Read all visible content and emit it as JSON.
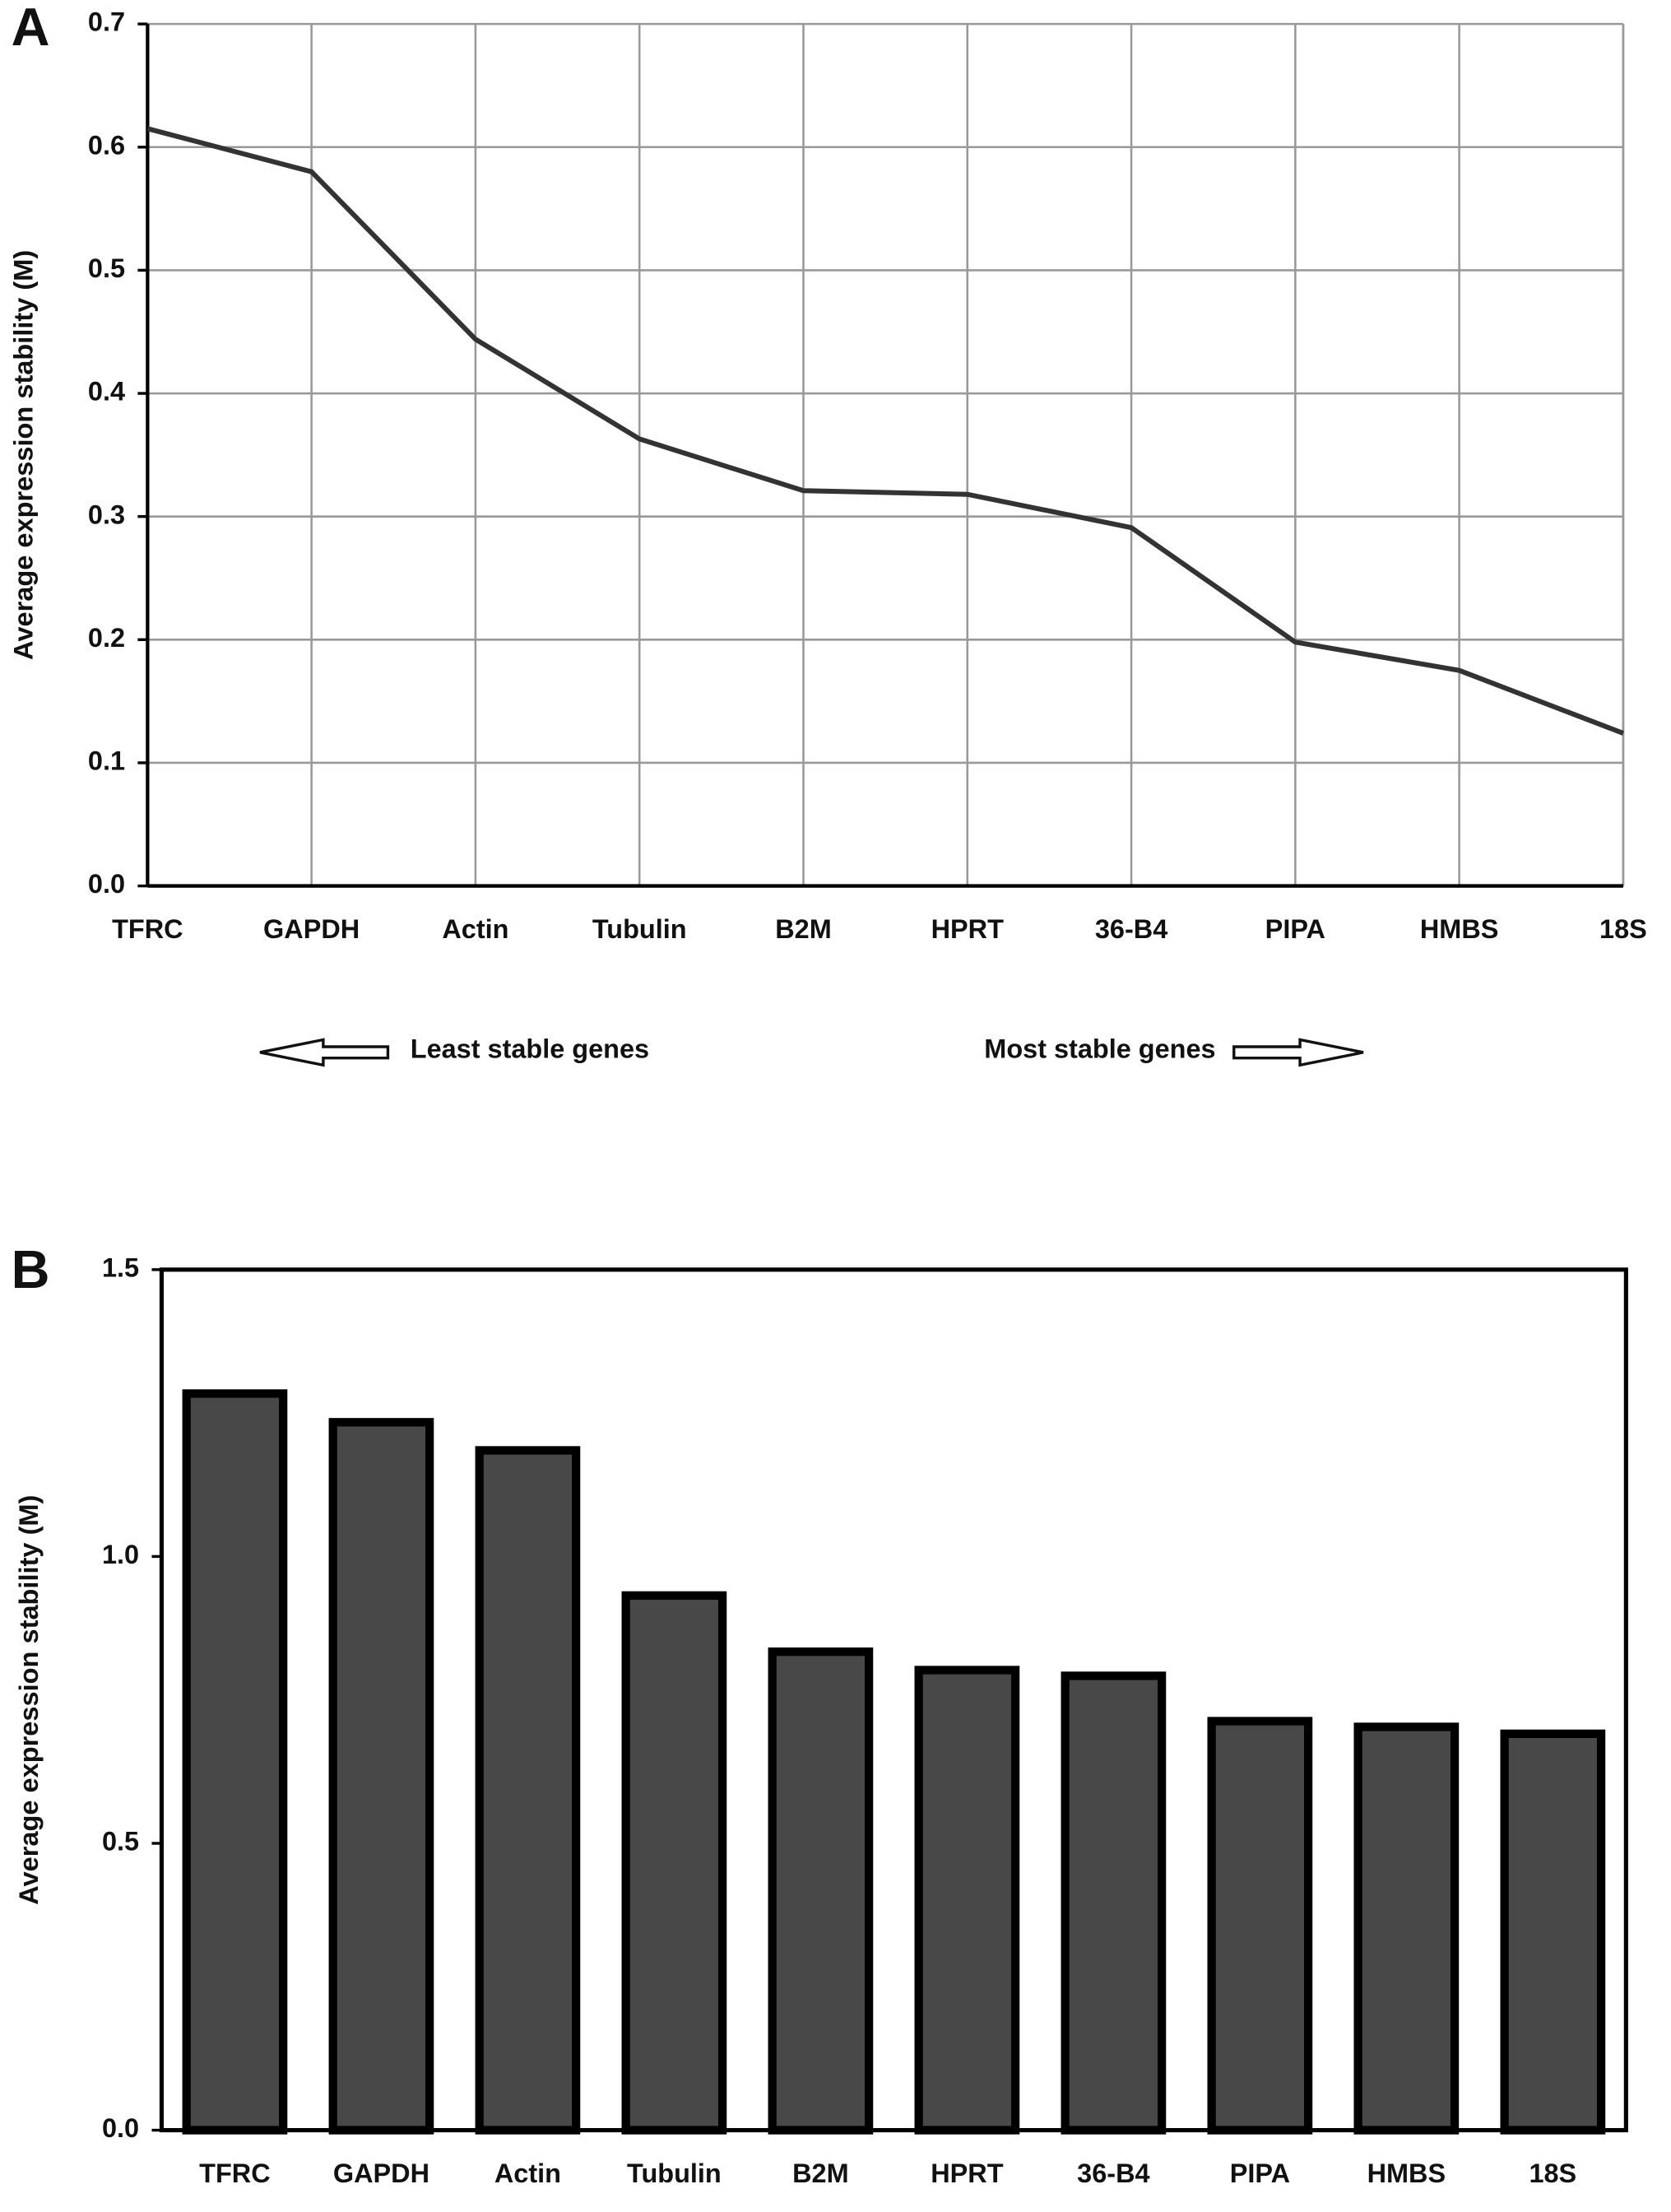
{
  "chart_data": [
    {
      "type": "line",
      "panel_label": "A",
      "y_label": "Average expression stability (M)",
      "categories": [
        "TFRC",
        "GAPDH",
        "Actin",
        "Tubulin",
        "B2M",
        "HPRT",
        "36-B4",
        "PIPA",
        "HMBS",
        "18S"
      ],
      "values": [
        0.615,
        0.58,
        0.444,
        0.363,
        0.321,
        0.318,
        0.291,
        0.198,
        0.175,
        0.124
      ],
      "color": "#333333",
      "ylim": [
        0,
        0.7
      ],
      "yticks": [
        {
          "value": 0,
          "label": "0.0"
        },
        0.1,
        0.2,
        0.3,
        0.4,
        0.5,
        0.6,
        0.7
      ],
      "grid": true,
      "annotations": [
        "Least stable genes",
        "Most stable genes"
      ]
    },
    {
      "type": "bar",
      "panel_label": "B",
      "y_label": "Average expression stability (M)",
      "categories": [
        "TFRC",
        "GAPDH",
        "Actin",
        "Tubulin",
        "B2M",
        "HPRT",
        "36-B4",
        "PIPA",
        "HMBS",
        "18S"
      ],
      "values": [
        1.284,
        1.234,
        1.185,
        0.932,
        0.834,
        0.802,
        0.792,
        0.713,
        0.703,
        0.691
      ],
      "color": "#484848",
      "ylim": [
        0,
        1.5
      ],
      "yticks": [
        {
          "value": 0,
          "label": "0.0"
        },
        0.5,
        {
          "value": 1,
          "label": "1.0"
        },
        1.5
      ],
      "grid": false
    }
  ]
}
